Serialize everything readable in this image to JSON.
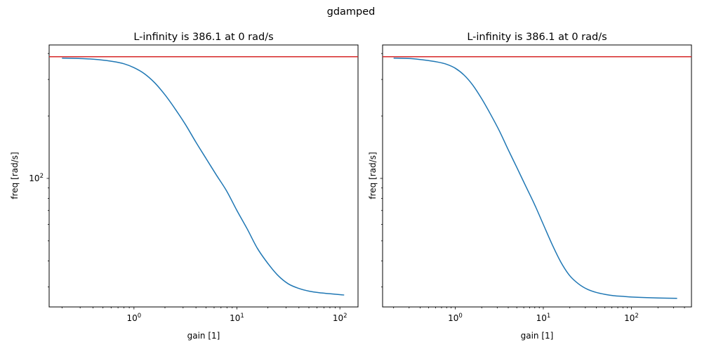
{
  "chart_data": {
    "type": "line",
    "suptitle": "gdamped",
    "colors": {
      "curve": "#1f77b4",
      "reference_line": "#d62728"
    },
    "panels": [
      {
        "title": "L-infinity is 386.1 at 0 rad/s",
        "xlabel": "gain [1]",
        "ylabel": "freq [rad/s]",
        "xscale": "log",
        "yscale": "log",
        "xlim": [
          0.15,
          150
        ],
        "ylim": [
          24,
          440
        ],
        "xticks": [
          {
            "base": "10",
            "exp": "0",
            "value": 1
          },
          {
            "base": "10",
            "exp": "1",
            "value": 10
          },
          {
            "base": "10",
            "exp": "2",
            "value": 100
          }
        ],
        "yticks": [
          {
            "base": "10",
            "exp": "2",
            "value": 100
          }
        ],
        "hline": 386.1,
        "series": [
          {
            "name": "gdamped",
            "x": [
              0.2,
              0.32,
              0.45,
              0.63,
              0.8,
              1.0,
              1.26,
              1.58,
              2.0,
              2.5,
              3.16,
              3.98,
              5.0,
              6.3,
              7.94,
              10.0,
              12.6,
              15.8,
              19.9,
              25.1,
              31.6,
              39.8,
              50.1,
              63.1,
              79.4,
              100,
              110
            ],
            "y": [
              380,
              378,
              374,
              366,
              357,
              342,
              320,
              290,
              253,
              217,
              182,
              150,
              125,
              104,
              87,
              70,
              57,
              46,
              39,
              34,
              31,
              29.5,
              28.6,
              28.1,
              27.8,
              27.5,
              27.4
            ]
          }
        ]
      },
      {
        "title": "L-infinity is 386.1 at 0 rad/s",
        "xlabel": "gain [1]",
        "ylabel": "freq [rad/s]",
        "xscale": "log",
        "yscale": "log",
        "xlim": [
          0.15,
          480
        ],
        "ylim": [
          24,
          440
        ],
        "xticks": [
          {
            "base": "10",
            "exp": "0",
            "value": 1
          },
          {
            "base": "10",
            "exp": "1",
            "value": 10
          },
          {
            "base": "10",
            "exp": "2",
            "value": 100
          }
        ],
        "yticks": [],
        "hline": 386.1,
        "series": [
          {
            "name": "gdamped",
            "x": [
              0.2,
              0.32,
              0.45,
              0.63,
              0.8,
              1.0,
              1.26,
              1.58,
              2.0,
              2.5,
              3.16,
              3.98,
              5.0,
              6.3,
              7.94,
              10.0,
              12.6,
              15.8,
              19.9,
              25.1,
              31.6,
              39.8,
              50.1,
              63.1,
              79.4,
              100,
              150,
              200,
              330
            ],
            "y": [
              380,
              378,
              372,
              364,
              355,
              340,
              315,
              282,
              242,
              205,
              170,
              138,
              113,
              92,
              75,
              60,
              48,
              39.5,
              34,
              31,
              29.2,
              28.2,
              27.6,
              27.2,
              27.0,
              26.8,
              26.6,
              26.5,
              26.4
            ]
          }
        ]
      }
    ]
  }
}
